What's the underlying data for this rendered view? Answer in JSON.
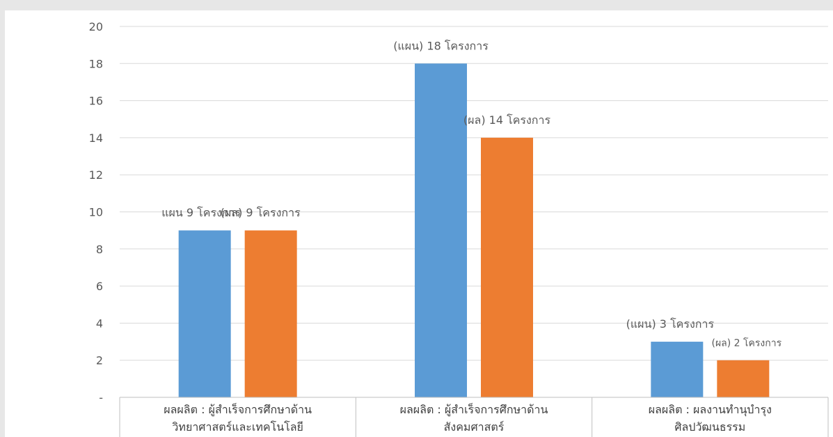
{
  "chart_data": {
    "type": "bar",
    "categories": [
      [
        "ผลผลิต : ผู้สำเร็จการศึกษาด้าน",
        "วิทยาศาสตร์และเทคโนโลยี"
      ],
      [
        "ผลผลิต : ผู้สำเร็จการศึกษาด้าน",
        "สังคมศาสตร์"
      ],
      [
        "ผลผลิต : ผลงานทำนุบำรุง",
        "ศิลปวัฒนธรรม"
      ]
    ],
    "series": [
      {
        "values": [
          9,
          18,
          3
        ],
        "color": "#5b9bd5",
        "labels": [
          "แผน 9 โครงการ",
          "(แผน)  18 โครงการ",
          "(แผน)  3  โครงการ"
        ]
      },
      {
        "values": [
          9,
          14,
          2
        ],
        "color": "#ed7d31",
        "labels": [
          "(ผล) 9  โครงการ",
          "(ผล) 14  โครงการ",
          "(ผล)  2  โครงการ"
        ]
      }
    ],
    "y_ticks": [
      "-",
      "2",
      "4",
      "6",
      "8",
      "10",
      "12",
      "14",
      "16",
      "18",
      "20"
    ],
    "ylim": [
      0,
      20
    ],
    "grid": true,
    "legend": "none"
  }
}
